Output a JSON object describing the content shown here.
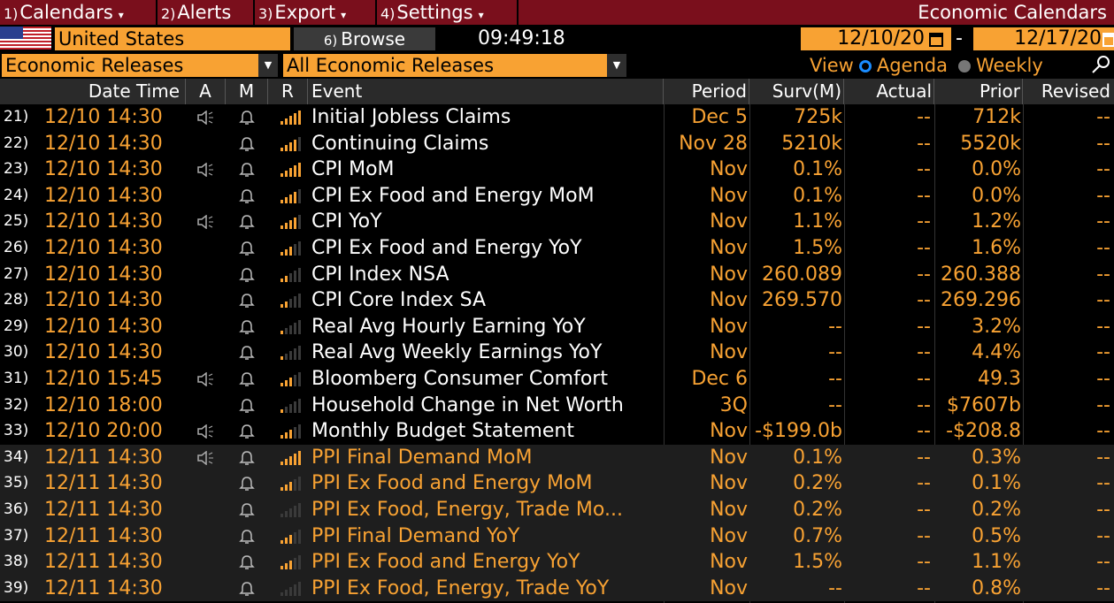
{
  "menu": [
    {
      "num": "1)",
      "label": "Calendars",
      "caret": "▾"
    },
    {
      "num": "2)",
      "label": "Alerts",
      "caret": ""
    },
    {
      "num": "3)",
      "label": "Export",
      "caret": "▾"
    },
    {
      "num": "4)",
      "label": "Settings",
      "caret": "▾"
    }
  ],
  "screen_title": "Economic Calendars",
  "country": "United States",
  "browse": {
    "num": "6)",
    "label": "Browse"
  },
  "clock": "09:49:18",
  "date_from": "12/10/20",
  "date_to": "12/17/20",
  "date_sep": "-",
  "filter1": "Economic Releases",
  "filter2": "All Economic Releases",
  "view": {
    "label": "View",
    "opt1": "Agenda",
    "opt2": "Weekly",
    "selected": "Agenda"
  },
  "columns": {
    "datetime": "Date Time",
    "a": "A",
    "m": "M",
    "r": "R",
    "event": "Event",
    "period": "Period",
    "surv": "Surv(M)",
    "actual": "Actual",
    "prior": "Prior",
    "revised": "Revised"
  },
  "colors": {
    "accent": "#f8a233",
    "title_bar": "#7a0f1c"
  },
  "rows": [
    {
      "idx": "21)",
      "dt": "12/10 14:30",
      "audio": true,
      "rel": 5,
      "event": "Initial Jobless Claims",
      "period": "Dec 5",
      "surv": "725k",
      "actual": "--",
      "prior": "712k",
      "revised": "--",
      "hl": false
    },
    {
      "idx": "22)",
      "dt": "12/10 14:30",
      "audio": false,
      "rel": 4,
      "event": "Continuing Claims",
      "period": "Nov 28",
      "surv": "5210k",
      "actual": "--",
      "prior": "5520k",
      "revised": "--",
      "hl": false
    },
    {
      "idx": "23)",
      "dt": "12/10 14:30",
      "audio": true,
      "rel": 5,
      "event": "CPI MoM",
      "period": "Nov",
      "surv": "0.1%",
      "actual": "--",
      "prior": "0.0%",
      "revised": "--",
      "hl": false
    },
    {
      "idx": "24)",
      "dt": "12/10 14:30",
      "audio": false,
      "rel": 4,
      "event": "CPI Ex Food and Energy MoM",
      "period": "Nov",
      "surv": "0.1%",
      "actual": "--",
      "prior": "0.0%",
      "revised": "--",
      "hl": false
    },
    {
      "idx": "25)",
      "dt": "12/10 14:30",
      "audio": true,
      "rel": 4,
      "event": "CPI YoY",
      "period": "Nov",
      "surv": "1.1%",
      "actual": "--",
      "prior": "1.2%",
      "revised": "--",
      "hl": false
    },
    {
      "idx": "26)",
      "dt": "12/10 14:30",
      "audio": false,
      "rel": 3,
      "event": "CPI Ex Food and Energy YoY",
      "period": "Nov",
      "surv": "1.5%",
      "actual": "--",
      "prior": "1.6%",
      "revised": "--",
      "hl": false
    },
    {
      "idx": "27)",
      "dt": "12/10 14:30",
      "audio": false,
      "rel": 2,
      "event": "CPI Index NSA",
      "period": "Nov",
      "surv": "260.089",
      "actual": "--",
      "prior": "260.388",
      "revised": "--",
      "hl": false
    },
    {
      "idx": "28)",
      "dt": "12/10 14:30",
      "audio": false,
      "rel": 2,
      "event": "CPI Core Index SA",
      "period": "Nov",
      "surv": "269.570",
      "actual": "--",
      "prior": "269.296",
      "revised": "--",
      "hl": false
    },
    {
      "idx": "29)",
      "dt": "12/10 14:30",
      "audio": false,
      "rel": 1,
      "event": "Real Avg Hourly Earning YoY",
      "period": "Nov",
      "surv": "--",
      "actual": "--",
      "prior": "3.2%",
      "revised": "--",
      "hl": false
    },
    {
      "idx": "30)",
      "dt": "12/10 14:30",
      "audio": false,
      "rel": 1,
      "event": "Real Avg Weekly Earnings YoY",
      "period": "Nov",
      "surv": "--",
      "actual": "--",
      "prior": "4.4%",
      "revised": "--",
      "hl": false
    },
    {
      "idx": "31)",
      "dt": "12/10 15:45",
      "audio": true,
      "rel": 3,
      "event": "Bloomberg Consumer Comfort",
      "period": "Dec 6",
      "surv": "--",
      "actual": "--",
      "prior": "49.3",
      "revised": "--",
      "hl": false
    },
    {
      "idx": "32)",
      "dt": "12/10 18:00",
      "audio": false,
      "rel": 1,
      "event": "Household Change in Net Worth",
      "period": "3Q",
      "surv": "--",
      "actual": "--",
      "prior": "$7607b",
      "revised": "--",
      "hl": false
    },
    {
      "idx": "33)",
      "dt": "12/10 20:00",
      "audio": true,
      "rel": 3,
      "event": "Monthly Budget Statement",
      "period": "Nov",
      "surv": "-$199.0b",
      "actual": "--",
      "prior": "-$208.8",
      "revised": "--",
      "hl": false
    },
    {
      "idx": "34)",
      "dt": "12/11 14:30",
      "audio": true,
      "rel": 5,
      "event": "PPI Final Demand MoM",
      "period": "Nov",
      "surv": "0.1%",
      "actual": "--",
      "prior": "0.3%",
      "revised": "--",
      "hl": true
    },
    {
      "idx": "35)",
      "dt": "12/11 14:30",
      "audio": false,
      "rel": 3,
      "event": "PPI Ex Food and Energy MoM",
      "period": "Nov",
      "surv": "0.2%",
      "actual": "--",
      "prior": "0.1%",
      "revised": "--",
      "hl": true
    },
    {
      "idx": "36)",
      "dt": "12/11 14:30",
      "audio": false,
      "rel": 0,
      "event": "PPI Ex Food, Energy, Trade Mo...",
      "period": "Nov",
      "surv": "0.2%",
      "actual": "--",
      "prior": "0.2%",
      "revised": "--",
      "hl": true
    },
    {
      "idx": "37)",
      "dt": "12/11 14:30",
      "audio": false,
      "rel": 3,
      "event": "PPI Final Demand YoY",
      "period": "Nov",
      "surv": "0.7%",
      "actual": "--",
      "prior": "0.5%",
      "revised": "--",
      "hl": true
    },
    {
      "idx": "38)",
      "dt": "12/11 14:30",
      "audio": false,
      "rel": 3,
      "event": "PPI Ex Food and Energy YoY",
      "period": "Nov",
      "surv": "1.5%",
      "actual": "--",
      "prior": "1.1%",
      "revised": "--",
      "hl": true
    },
    {
      "idx": "39)",
      "dt": "12/11 14:30",
      "audio": false,
      "rel": 0,
      "event": "PPI Ex Food, Energy, Trade YoY",
      "period": "Nov",
      "surv": "--",
      "actual": "--",
      "prior": "0.8%",
      "revised": "--",
      "hl": true
    }
  ]
}
